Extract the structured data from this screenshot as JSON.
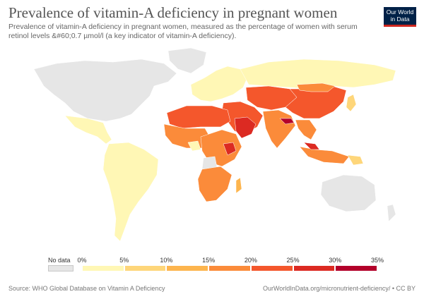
{
  "header": {
    "title": "Prevalence of vitamin-A deficiency in pregnant women",
    "subtitle": "Prevalence of vitamin-A deficiency in pregnant women, measured as the percentage of women with serum retinol levels &#60;0.7 µmol/l (a key indicator of vitamin-A deficiency).",
    "logo_line1": "Our World",
    "logo_line2": "in Data"
  },
  "legend": {
    "no_data_label": "No data",
    "no_data_color": "#e6e6e6",
    "ticks": [
      "0%",
      "5%",
      "10%",
      "15%",
      "20%",
      "25%",
      "30%",
      "35%"
    ],
    "bin_colors": [
      "#fff7b5",
      "#fed67a",
      "#fdb54e",
      "#fb8b3a",
      "#f4572c",
      "#dc2a22",
      "#b3002a"
    ]
  },
  "footer": {
    "source": "Source: WHO Global Database on Vitamin A Deficiency",
    "url": "OurWorldInData.org/micronutrient-deficiency/ • CC BY"
  }
}
